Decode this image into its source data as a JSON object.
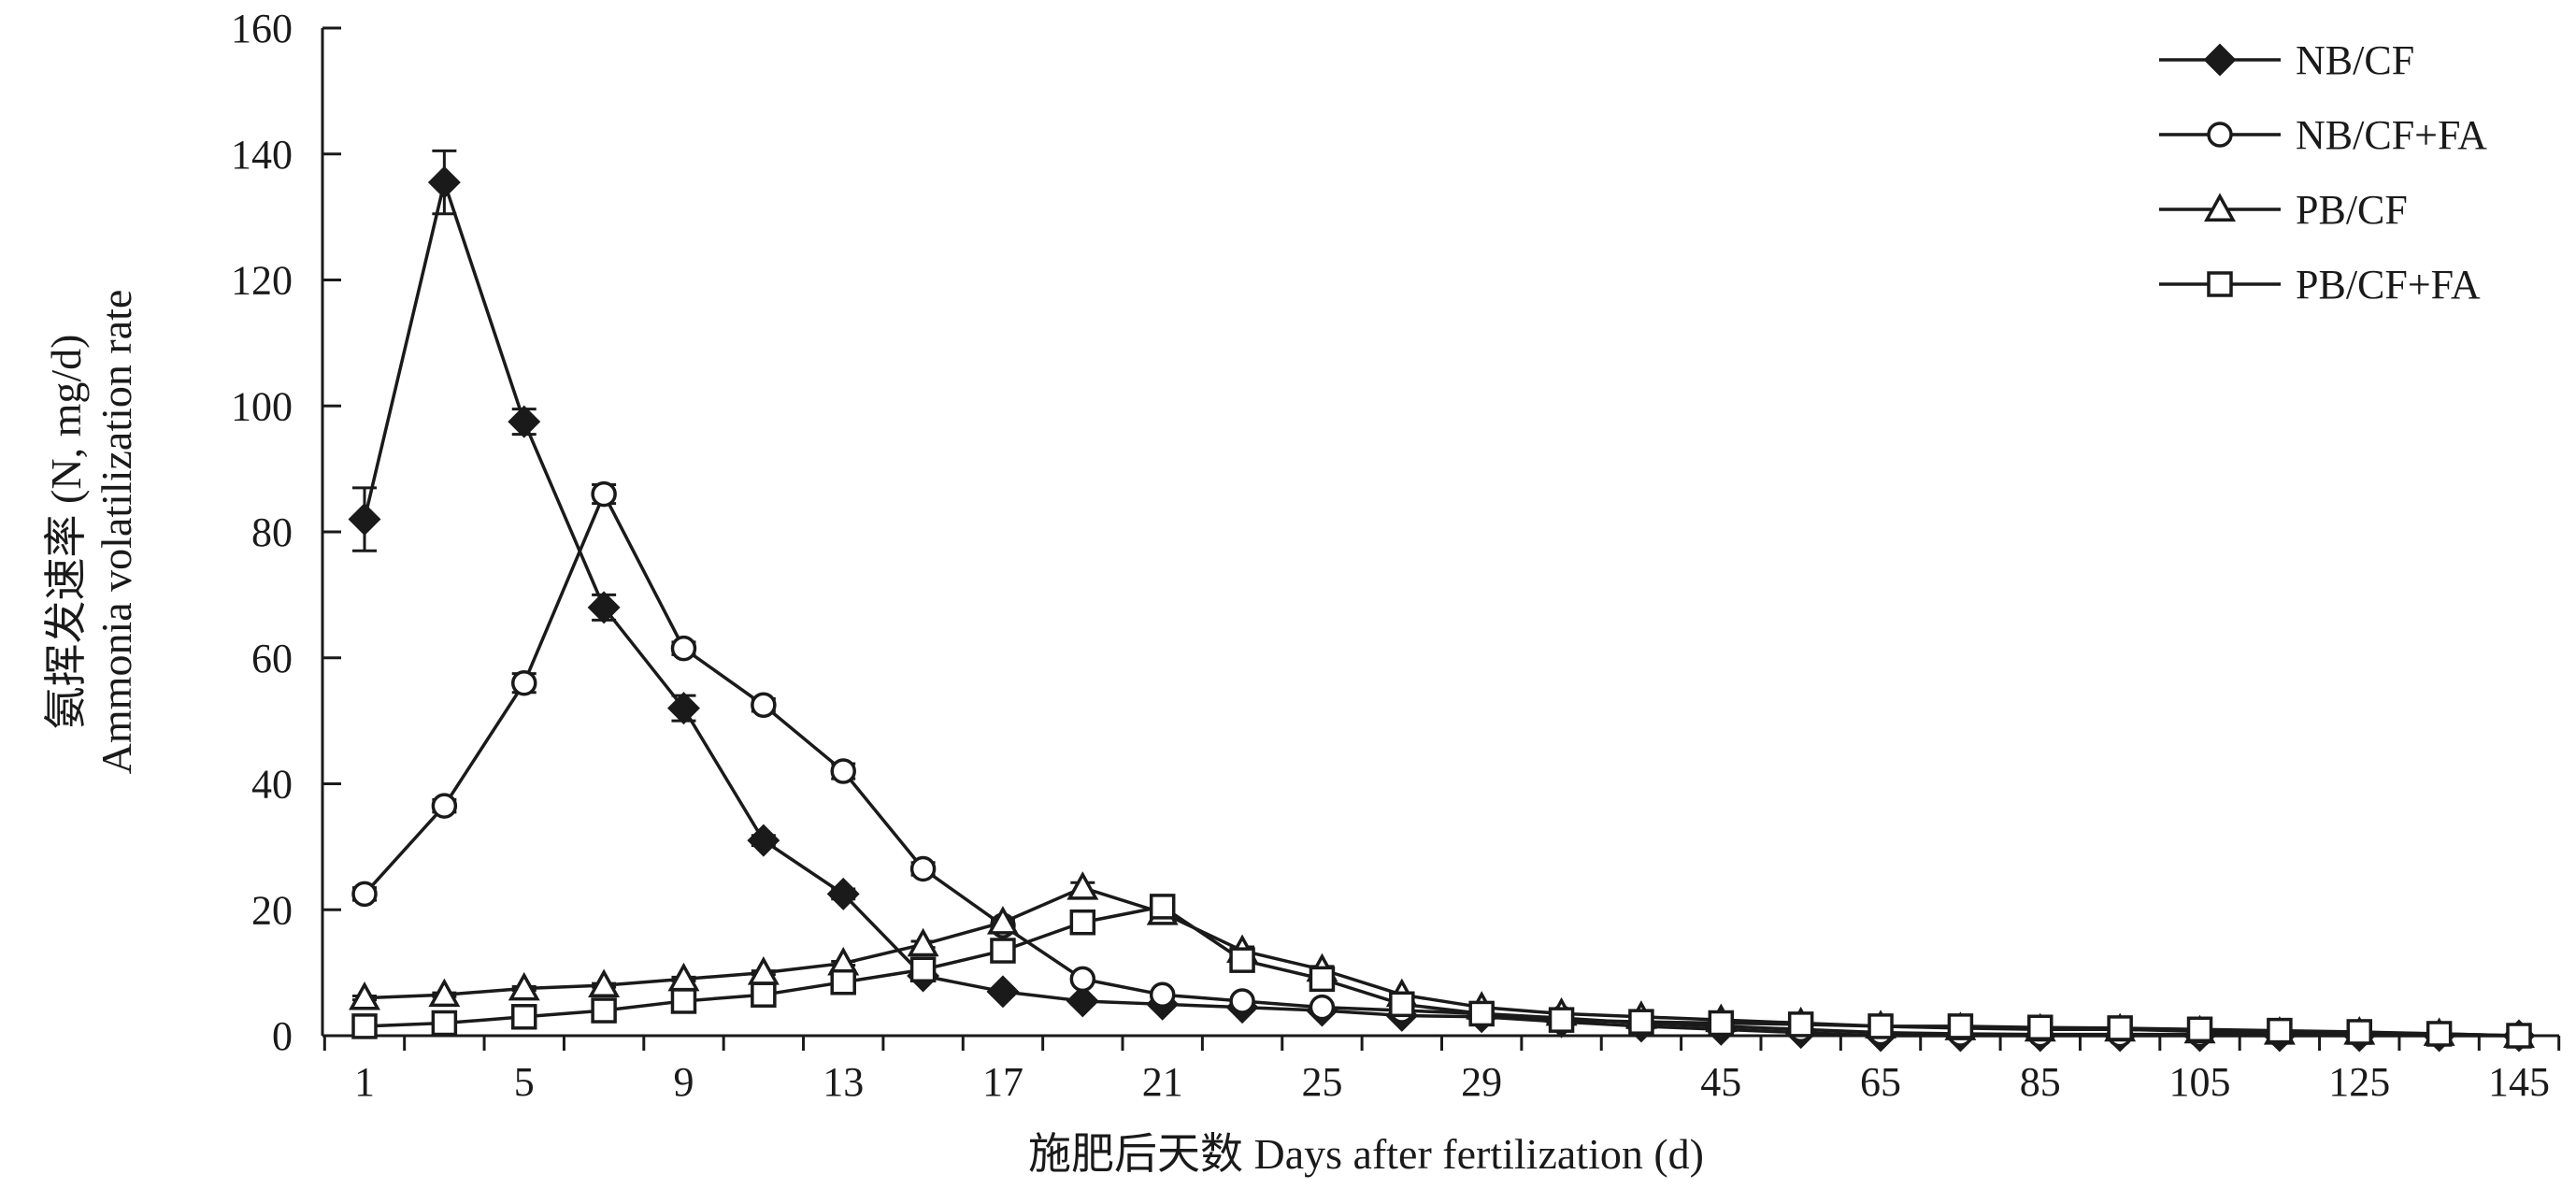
{
  "chart_data": {
    "type": "line",
    "xlabel": "施肥后天数 Days after fertilization (d)",
    "ylabel_line1": "氨挥发速率 (N, mg/d)",
    "ylabel_line2": "Ammonia volatilization rate",
    "ylim": [
      0,
      160
    ],
    "yticks": [
      0,
      20,
      40,
      60,
      80,
      100,
      120,
      140,
      160
    ],
    "x": [
      1,
      3,
      5,
      7,
      9,
      11,
      13,
      15,
      17,
      19,
      21,
      23,
      25,
      27,
      29,
      31,
      35,
      45,
      55,
      65,
      75,
      85,
      95,
      105,
      115,
      125,
      135,
      145
    ],
    "xtick_labels": [
      "1",
      "5",
      "9",
      "13",
      "17",
      "21",
      "25",
      "29",
      "45",
      "65",
      "85",
      "105",
      "125",
      "145"
    ],
    "xtick_label_values": [
      1,
      5,
      9,
      13,
      17,
      21,
      25,
      29,
      45,
      65,
      85,
      105,
      125,
      145
    ],
    "grid": false,
    "legend_position": "top-right",
    "series": [
      {
        "name": "NB/CF",
        "marker": "diamond-filled",
        "values": [
          82,
          135.5,
          97.5,
          68,
          52,
          31,
          22.5,
          9.5,
          7,
          5.5,
          5,
          4.5,
          4,
          3.2,
          3,
          2.2,
          1.5,
          1,
          0.5,
          0,
          0,
          0,
          0,
          0,
          0,
          0,
          0,
          0
        ],
        "errors": [
          5,
          5,
          2,
          2,
          2,
          0.8,
          0.8,
          0.5,
          0.5,
          0.5,
          0.5,
          0.5,
          0.5,
          0.3,
          0.3,
          0.3,
          0.3,
          2,
          2.5,
          0,
          0,
          0,
          0,
          0,
          0,
          0,
          0,
          0
        ]
      },
      {
        "name": "NB/CF+FA",
        "marker": "circle-open",
        "values": [
          22.5,
          36.5,
          56,
          86,
          61.5,
          52.5,
          42,
          26.5,
          17.5,
          9,
          6.5,
          5.5,
          4.5,
          4,
          3.5,
          2.8,
          2,
          1.5,
          1,
          0.5,
          0.3,
          0.2,
          0.2,
          0.2,
          0.2,
          0.2,
          0.1,
          0
        ],
        "errors": [
          1,
          1,
          1.5,
          1.5,
          1,
          1,
          1.2,
          1,
          0.5,
          0.5,
          0.5,
          0.5,
          0.5,
          0.3,
          0.3,
          0.3,
          0.3,
          0.3,
          0.3,
          0.3,
          0.3,
          0.3,
          0.3,
          0.3,
          0.3,
          0.3,
          0.3,
          0
        ]
      },
      {
        "name": "PB/CF",
        "marker": "triangle-open",
        "values": [
          6,
          6.5,
          7.5,
          8,
          9,
          10,
          11.5,
          14.5,
          18,
          23.5,
          19.5,
          13.5,
          10.5,
          6.5,
          4.5,
          3.5,
          3,
          2.5,
          2,
          1.5,
          1.2,
          1,
          1,
          0.7,
          0.5,
          0.5,
          0.3,
          0
        ],
        "errors": [
          0.3,
          0.3,
          0.3,
          0.3,
          0.3,
          0.3,
          0.3,
          0.5,
          0.5,
          0.8,
          0.8,
          0.6,
          0.5,
          0.3,
          0.3,
          0.3,
          0.3,
          0.3,
          0.3,
          0.3,
          0.3,
          0.3,
          0.3,
          0.3,
          0.3,
          0.3,
          0.3,
          0
        ]
      },
      {
        "name": "PB/CF+FA",
        "marker": "square-open",
        "values": [
          1.5,
          2,
          3,
          4,
          5.5,
          6.5,
          8.5,
          10.5,
          13.5,
          18,
          20.5,
          12,
          9,
          5,
          3.5,
          2.5,
          2.2,
          2,
          1.8,
          1.5,
          1.5,
          1.3,
          1.2,
          1,
          0.8,
          0.6,
          0.3,
          0
        ],
        "errors": [
          0.3,
          0.3,
          0.3,
          0.3,
          0.3,
          0.3,
          0.5,
          0.5,
          0.5,
          0.5,
          0.8,
          0.8,
          0.5,
          0.3,
          0.3,
          0.3,
          0.3,
          0.3,
          0.3,
          0.3,
          0.3,
          0.3,
          0.3,
          0.3,
          0.3,
          0.3,
          0.3,
          0
        ]
      }
    ]
  }
}
